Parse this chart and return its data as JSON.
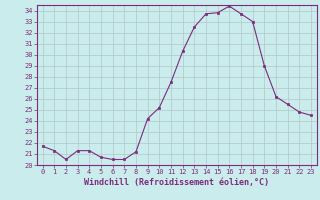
{
  "x": [
    0,
    1,
    2,
    3,
    4,
    5,
    6,
    7,
    8,
    9,
    10,
    11,
    12,
    13,
    14,
    15,
    16,
    17,
    18,
    19,
    20,
    21,
    22,
    23
  ],
  "y": [
    21.7,
    21.3,
    20.5,
    21.3,
    21.3,
    20.7,
    20.5,
    20.5,
    21.2,
    24.2,
    25.2,
    27.5,
    30.3,
    32.5,
    33.7,
    33.8,
    34.4,
    33.7,
    33.0,
    29.0,
    26.2,
    25.5,
    24.8,
    24.5
  ],
  "line_color": "#7b2d7b",
  "marker": "s",
  "marker_size": 1.8,
  "xlabel": "Windchill (Refroidissement éolien,°C)",
  "ylabel": "",
  "ylim": [
    20,
    34.5
  ],
  "xlim": [
    -0.5,
    23.5
  ],
  "yticks": [
    20,
    21,
    22,
    23,
    24,
    25,
    26,
    27,
    28,
    29,
    30,
    31,
    32,
    33,
    34
  ],
  "xticks": [
    0,
    1,
    2,
    3,
    4,
    5,
    6,
    7,
    8,
    9,
    10,
    11,
    12,
    13,
    14,
    15,
    16,
    17,
    18,
    19,
    20,
    21,
    22,
    23
  ],
  "background_color": "#cbecec",
  "grid_color": "#b0c8c8",
  "tick_label_fontsize": 5.0,
  "xlabel_fontsize": 6.0
}
